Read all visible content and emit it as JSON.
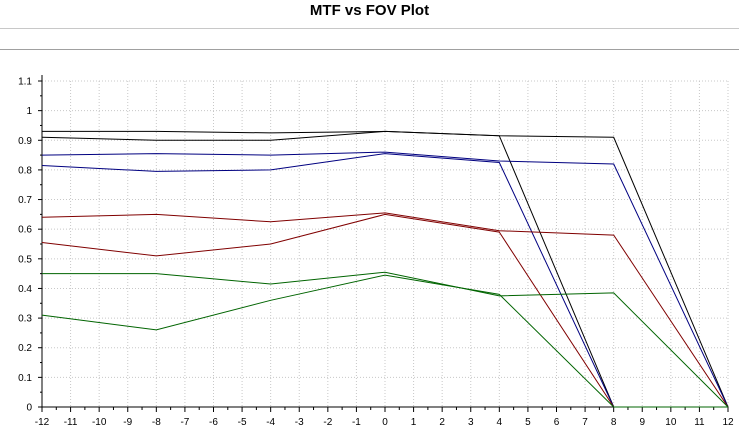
{
  "title": "MTF vs FOV Plot",
  "chart_data": {
    "type": "line",
    "title": "MTF vs FOV Plot",
    "xlabel": "",
    "ylabel": "",
    "xlim": [
      -12,
      12
    ],
    "ylim": [
      0,
      1.1
    ],
    "x_ticks": [
      "-12",
      "-11",
      "-10",
      "-9",
      "-8",
      "-7",
      "-6",
      "-5",
      "-4",
      "-3",
      "-2",
      "-1",
      "0",
      "1",
      "2",
      "3",
      "4",
      "5",
      "6",
      "7",
      "8",
      "9",
      "10",
      "11",
      "12"
    ],
    "y_ticks": [
      "0",
      "0.1",
      "0.2",
      "0.3",
      "0.4",
      "0.5",
      "0.6",
      "0.7",
      "0.8",
      "0.9",
      "1",
      "1.1"
    ],
    "grid": true,
    "legend": "none",
    "series": [
      {
        "color": "#000000",
        "x": [
          -12,
          -8,
          -4,
          0,
          4,
          8,
          12
        ],
        "y": [
          0.93,
          0.93,
          0.925,
          0.93,
          0.915,
          0.91,
          0.0
        ]
      },
      {
        "color": "#000000",
        "x": [
          -12,
          -8,
          -4,
          0,
          4,
          8
        ],
        "y": [
          0.91,
          0.9,
          0.9,
          0.93,
          0.915,
          0.0
        ]
      },
      {
        "color": "#000080",
        "x": [
          -12,
          -8,
          -4,
          0,
          4,
          8,
          12
        ],
        "y": [
          0.85,
          0.855,
          0.85,
          0.86,
          0.83,
          0.82,
          0.0
        ]
      },
      {
        "color": "#000080",
        "x": [
          -12,
          -8,
          -4,
          0,
          4,
          8
        ],
        "y": [
          0.815,
          0.795,
          0.8,
          0.855,
          0.825,
          0.0
        ]
      },
      {
        "color": "#800000",
        "x": [
          -12,
          -8,
          -4,
          0,
          4,
          8,
          12
        ],
        "y": [
          0.64,
          0.65,
          0.625,
          0.655,
          0.595,
          0.58,
          0.0
        ]
      },
      {
        "color": "#800000",
        "x": [
          -12,
          -8,
          -4,
          0,
          4,
          8
        ],
        "y": [
          0.555,
          0.51,
          0.55,
          0.65,
          0.59,
          0.0
        ]
      },
      {
        "color": "#006400",
        "x": [
          -12,
          -8,
          -4,
          0,
          4,
          8,
          12
        ],
        "y": [
          0.45,
          0.45,
          0.415,
          0.455,
          0.375,
          0.385,
          0.0
        ]
      },
      {
        "color": "#006400",
        "x": [
          -12,
          -8,
          -4,
          0,
          4,
          8,
          12
        ],
        "y": [
          0.31,
          0.26,
          0.36,
          0.445,
          0.38,
          0.0,
          0.0
        ]
      }
    ]
  }
}
